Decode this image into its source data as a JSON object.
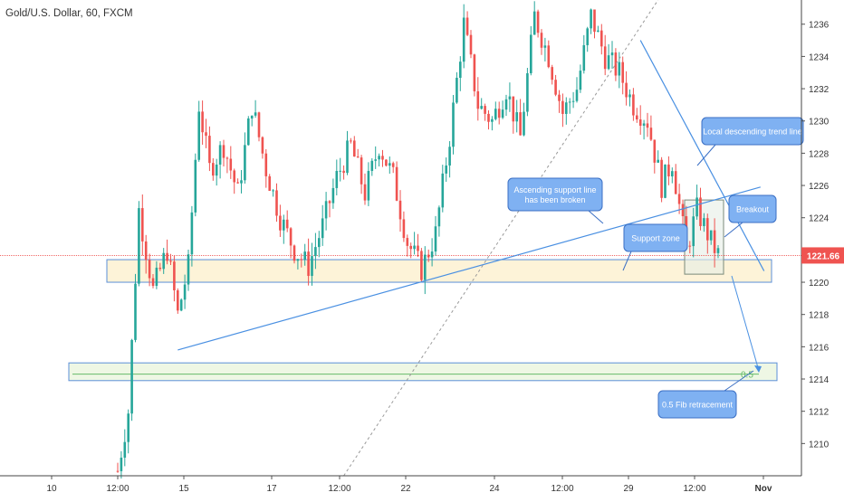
{
  "header": {
    "title": "Gold/U.S. Dollar, 60, FXCM"
  },
  "price_badge": {
    "value": "1221.66"
  },
  "colors": {
    "up": "#26a69a",
    "down": "#ef5350",
    "trend_line": "#4a90e2",
    "zone_fill": "#fdf3d8",
    "fib_fill": "#eef7e4",
    "fib_line": "#66bb6a",
    "callout": "#7fb1f2",
    "price_line": "#ef5350"
  },
  "annotations": {
    "ascending": "Ascending support line\nhas been broken",
    "local_trend": "Local descending trend line",
    "breakout": "Breakout",
    "support_zone": "Support zone",
    "fib_callout": "0.5 Fib retracement",
    "fib_level": "0.5"
  },
  "chart_data": {
    "type": "candlestick",
    "title": "Gold/U.S. Dollar, 60, FXCM",
    "ylim": [
      1208,
      1237.5
    ],
    "y_ticks": [
      1210,
      1212,
      1214,
      1216,
      1218,
      1220,
      1222,
      1224,
      1226,
      1228,
      1230,
      1232,
      1234,
      1236
    ],
    "x_ticks": [
      "10",
      "12:00",
      "15",
      "17",
      "12:00",
      "22",
      "24",
      "12:00",
      "29",
      "12:00",
      "Nov"
    ],
    "last_price": 1221.66,
    "path_anchors": [
      [
        0,
        1208.3
      ],
      [
        3,
        1212.0
      ],
      [
        6,
        1224.5
      ],
      [
        10,
        1219.5
      ],
      [
        14,
        1222.0
      ],
      [
        17,
        1218.0
      ],
      [
        20,
        1221.0
      ],
      [
        23,
        1231.0
      ],
      [
        26,
        1227.0
      ],
      [
        30,
        1228.5
      ],
      [
        34,
        1225.5
      ],
      [
        38,
        1231.0
      ],
      [
        42,
        1227.0
      ],
      [
        46,
        1224.0
      ],
      [
        50,
        1222.0
      ],
      [
        54,
        1221.0
      ],
      [
        58,
        1223.5
      ],
      [
        62,
        1226.5
      ],
      [
        66,
        1228.5
      ],
      [
        70,
        1225.5
      ],
      [
        74,
        1228.5
      ],
      [
        78,
        1226.5
      ],
      [
        82,
        1222.5
      ],
      [
        86,
        1220.8
      ],
      [
        90,
        1223.0
      ],
      [
        94,
        1229.0
      ],
      [
        98,
        1236.0
      ],
      [
        102,
        1231.0
      ],
      [
        106,
        1230.0
      ],
      [
        110,
        1232.0
      ],
      [
        114,
        1229.0
      ],
      [
        118,
        1236.5
      ],
      [
        122,
        1234.0
      ],
      [
        126,
        1230.5
      ],
      [
        130,
        1232.0
      ],
      [
        134,
        1236.5
      ],
      [
        138,
        1234.0
      ],
      [
        142,
        1233.0
      ],
      [
        146,
        1231.0
      ],
      [
        150,
        1230.0
      ],
      [
        154,
        1226.0
      ],
      [
        157,
        1227.5
      ],
      [
        161,
        1222.0
      ],
      [
        164,
        1224.5
      ],
      [
        168,
        1222.5
      ],
      [
        170,
        1221.7
      ]
    ],
    "zones": [
      {
        "name": "Support zone",
        "y_top": 1221.4,
        "y_bottom": 1220.0
      },
      {
        "name": "Fib zone",
        "y_top": 1215.0,
        "y_bottom": 1213.9
      }
    ],
    "fib_level": {
      "label": "0.5",
      "price": 1214.3
    },
    "trend_lines": [
      {
        "name": "Ascending support line",
        "from": [
          17,
          1215.8
        ],
        "to": [
          182,
          1225.9
        ]
      },
      {
        "name": "Local descending trend line",
        "from": [
          148,
          1235.0
        ],
        "to": [
          183,
          1220.7
        ]
      }
    ],
    "dotted_trend": {
      "from": [
        64,
        1208.0
      ],
      "to": [
        153,
        1237.5
      ]
    }
  }
}
